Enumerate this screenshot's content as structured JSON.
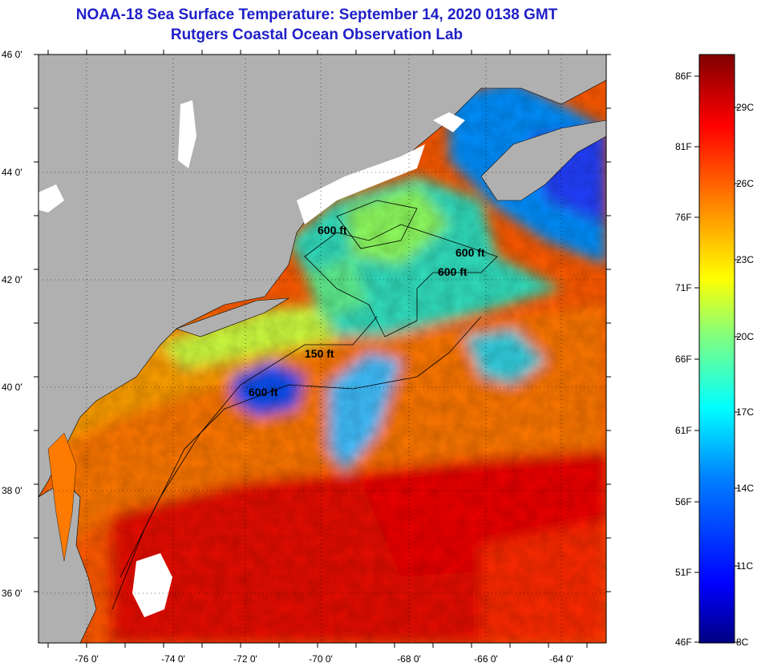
{
  "header": {
    "title": "NOAA-18 Sea Surface Temperature:  September 14, 2020 0138 GMT",
    "subtitle": "Rutgers Coastal Ocean Observation Lab"
  },
  "map": {
    "lat_labels": [
      "46 0'",
      "44 0'",
      "42 0'",
      "40 0'",
      "38 0'",
      "36 0'"
    ],
    "lon_labels": [
      "-76 0'",
      "-74 0'",
      "-72 0'",
      "-70 0'",
      "-68 0'",
      "-66 0'",
      "-64 0'"
    ],
    "lat_range": [
      35,
      46
    ],
    "lon_range": [
      -77,
      -63.5
    ],
    "isobath_labels": [
      "600 ft",
      "600 ft",
      "150 ft",
      "600 ft",
      "600 ft"
    ],
    "colors": {
      "land": "#b0b0b0",
      "cloud": "#ffffff",
      "coast": "#000000"
    }
  },
  "colorbar": {
    "fahrenheit_labels": [
      "86F",
      "81F",
      "76F",
      "71F",
      "66F",
      "61F",
      "56F",
      "51F",
      "46F"
    ],
    "celsius_labels": [
      "29C",
      "26C",
      "23C",
      "20C",
      "17C",
      "14C",
      "11C",
      "8C"
    ],
    "range_c": [
      8,
      30
    ],
    "stops": [
      "#000080",
      "#0000ff",
      "#0080ff",
      "#00ffff",
      "#80ff80",
      "#ffff00",
      "#ff8000",
      "#ff0000",
      "#800000"
    ]
  }
}
